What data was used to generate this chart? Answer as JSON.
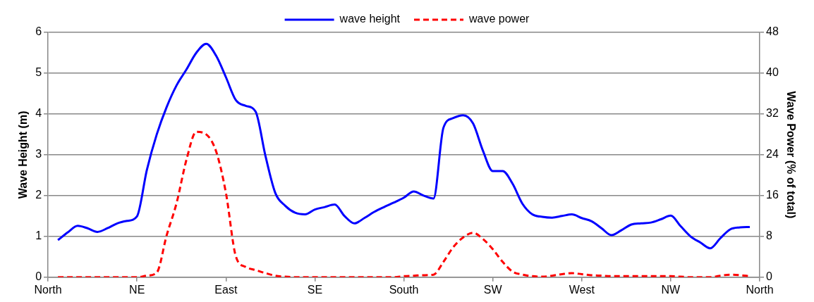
{
  "chart_data": {
    "type": "line",
    "ylabel": "Wave Height (m)",
    "y2label": "Wave Power (% of total)",
    "categories": [
      "North",
      null,
      null,
      null,
      null,
      null,
      null,
      null,
      null,
      "NE",
      null,
      null,
      null,
      null,
      null,
      null,
      null,
      null,
      "East",
      null,
      null,
      null,
      null,
      null,
      null,
      null,
      null,
      "SE",
      null,
      null,
      null,
      null,
      null,
      null,
      null,
      null,
      "South",
      null,
      null,
      null,
      null,
      null,
      null,
      null,
      null,
      "SW",
      null,
      null,
      null,
      null,
      null,
      null,
      null,
      null,
      "West",
      null,
      null,
      null,
      null,
      null,
      null,
      null,
      null,
      "NW",
      null,
      null,
      null,
      null,
      null,
      null,
      null,
      null,
      "North"
    ],
    "ylim": [
      0,
      6
    ],
    "yticks": [
      0,
      1,
      2,
      3,
      4,
      5,
      6
    ],
    "y2lim": [
      0,
      48
    ],
    "y2ticks": [
      0,
      8,
      16,
      24,
      32,
      40,
      48
    ],
    "grid": "y",
    "legend": "top",
    "series": [
      {
        "name": "wave height",
        "color": "#0000ff",
        "line_style": "solid",
        "values": [
          null,
          0.91,
          1.1,
          1.26,
          1.2,
          1.11,
          1.2,
          1.32,
          1.38,
          1.49,
          2.63,
          3.5,
          4.17,
          4.7,
          5.09,
          5.5,
          5.72,
          5.43,
          4.9,
          4.34,
          4.2,
          4.06,
          2.97,
          2.06,
          1.75,
          1.58,
          1.54,
          1.66,
          1.72,
          1.78,
          1.5,
          1.32,
          1.45,
          1.6,
          1.72,
          1.83,
          1.95,
          2.1,
          2.0,
          1.93,
          3.66,
          3.9,
          3.97,
          3.77,
          3.1,
          2.6,
          2.6,
          2.29,
          1.8,
          1.54,
          1.48,
          1.46,
          1.5,
          1.54,
          1.45,
          1.37,
          1.2,
          1.03,
          1.15,
          1.29,
          1.32,
          1.34,
          1.42,
          1.51,
          1.25,
          1.0,
          0.85,
          0.71,
          0.95,
          1.17,
          1.22,
          1.23,
          null
        ]
      },
      {
        "name": "wave power",
        "color": "#ff0000",
        "line_style": "dashed",
        "axis": "y2",
        "values": [
          null,
          0,
          0,
          0,
          0,
          0,
          0,
          0,
          0,
          0,
          0.3,
          0.9,
          8.2,
          14.5,
          23,
          28.5,
          28,
          24.7,
          16.5,
          4.1,
          2.0,
          1.4,
          0.8,
          0.3,
          0.1,
          0,
          0,
          0,
          0,
          0,
          0,
          0,
          0,
          0,
          0,
          0,
          0.2,
          0.3,
          0.4,
          0.5,
          3.0,
          5.9,
          7.8,
          8.7,
          7.5,
          5.5,
          3.0,
          1.1,
          0.5,
          0.2,
          0.1,
          0.3,
          0.6,
          0.8,
          0.6,
          0.4,
          0.3,
          0.2,
          0.2,
          0.2,
          0.2,
          0.2,
          0.2,
          0.2,
          0.1,
          0,
          0,
          0,
          0.3,
          0.5,
          0.4,
          0.2,
          null
        ]
      }
    ]
  }
}
